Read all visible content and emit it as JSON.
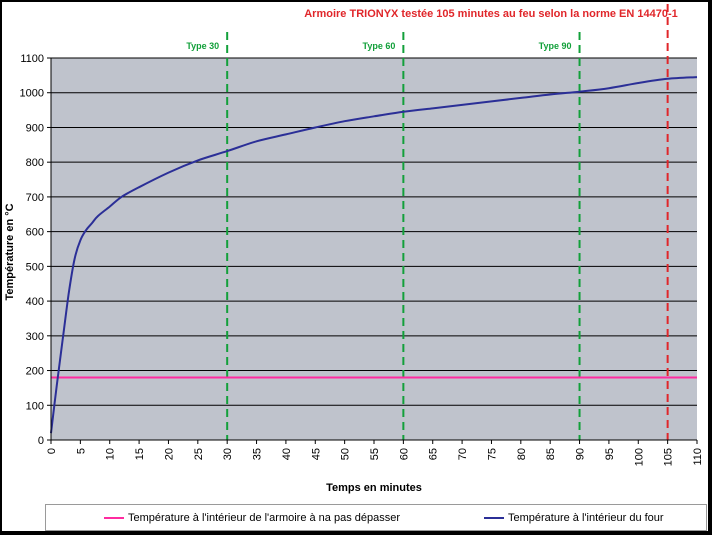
{
  "chart_data": {
    "type": "line",
    "title": "Armoire TRIONYX testée 105 minutes au feu selon la norme EN 14470-1",
    "xlabel": "Temps en minutes",
    "ylabel": "Température en °C",
    "xlim": [
      0,
      110
    ],
    "ylim": [
      0,
      1100
    ],
    "x_ticks": [
      "0",
      "5",
      "10",
      "15",
      "20",
      "25",
      "30",
      "35",
      "40",
      "45",
      "50",
      "55",
      "60",
      "65",
      "70",
      "75",
      "80",
      "85",
      "90",
      "95",
      "100",
      "105",
      "110"
    ],
    "y_ticks": [
      "0",
      "100",
      "200",
      "300",
      "400",
      "500",
      "600",
      "700",
      "800",
      "900",
      "1000",
      "1100"
    ],
    "grid": true,
    "plot_background": "#bfc3cc",
    "legend_placement": "bottom",
    "series": [
      {
        "name": "Température à l'intérieur de l'armoire à na pas dépasser",
        "color": "#ff2ba0",
        "x": [
          0,
          110
        ],
        "y": [
          180,
          180
        ]
      },
      {
        "name": "Température à l'intérieur du four",
        "color": "#2b2f97",
        "x": [
          0,
          1,
          2,
          3,
          4,
          5,
          6,
          7,
          8,
          10,
          12,
          15,
          20,
          25,
          30,
          35,
          40,
          45,
          50,
          55,
          60,
          65,
          70,
          75,
          80,
          85,
          90,
          95,
          100,
          105,
          110
        ],
        "y": [
          20,
          160,
          290,
          420,
          520,
          575,
          605,
          625,
          645,
          672,
          700,
          728,
          770,
          805,
          832,
          860,
          880,
          900,
          918,
          932,
          945,
          955,
          965,
          975,
          985,
          995,
          1003,
          1013,
          1028,
          1040,
          1045
        ]
      }
    ],
    "markers": [
      {
        "x": 30,
        "label": "Type 30",
        "color": "#12a03a"
      },
      {
        "x": 60,
        "label": "Type 60",
        "color": "#12a03a"
      },
      {
        "x": 90,
        "label": "Type 90",
        "color": "#12a03a"
      },
      {
        "x": 105,
        "label": "",
        "color": "#e0262a"
      }
    ],
    "title_color": "#e0262a"
  }
}
